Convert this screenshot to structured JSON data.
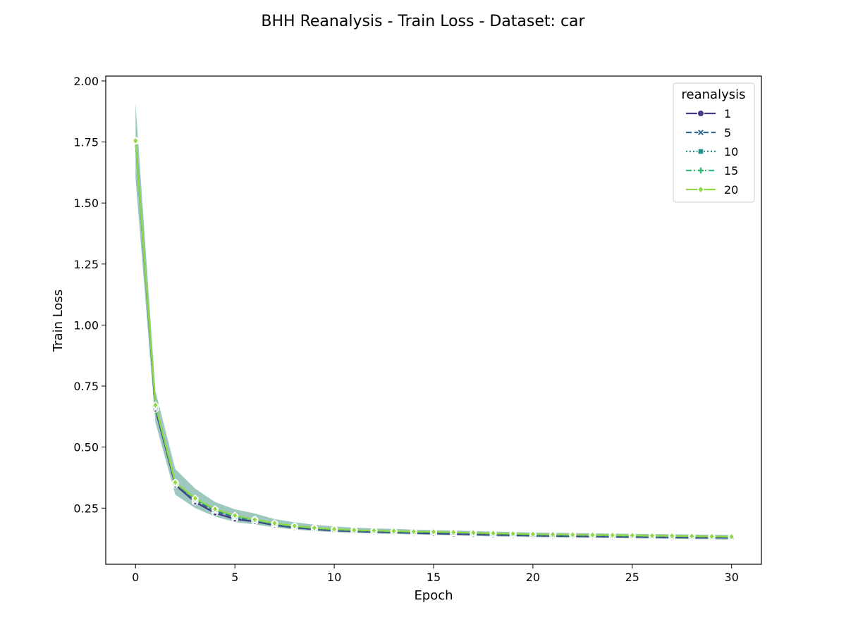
{
  "chart_data": {
    "type": "line",
    "title": "BHH Reanalysis - Train Loss - Dataset: car",
    "xlabel": "Epoch",
    "ylabel": "Train Loss",
    "xlim": [
      -1.5,
      31.5
    ],
    "ylim": [
      0.02,
      2.02
    ],
    "xticks": [
      0,
      5,
      10,
      15,
      20,
      25,
      30
    ],
    "yticks": [
      0.25,
      0.5,
      0.75,
      1.0,
      1.25,
      1.5,
      1.75,
      2.0
    ],
    "grid": false,
    "legend": {
      "title": "reanalysis",
      "placement": "top-right"
    },
    "x": [
      0,
      1,
      2,
      3,
      4,
      5,
      6,
      7,
      8,
      9,
      10,
      11,
      12,
      13,
      14,
      15,
      16,
      17,
      18,
      19,
      20,
      21,
      22,
      23,
      24,
      25,
      26,
      27,
      28,
      29,
      30
    ],
    "series": [
      {
        "name": "1",
        "color": "#443983",
        "marker": "circle",
        "dash": "solid",
        "values": [
          1.755,
          0.655,
          0.345,
          0.275,
          0.23,
          0.205,
          0.195,
          0.18,
          0.17,
          0.163,
          0.158,
          0.155,
          0.152,
          0.15,
          0.148,
          0.146,
          0.144,
          0.142,
          0.14,
          0.139,
          0.137,
          0.136,
          0.135,
          0.134,
          0.133,
          0.132,
          0.131,
          0.13,
          0.129,
          0.129,
          0.128
        ]
      },
      {
        "name": "5",
        "color": "#31688e",
        "marker": "x",
        "dash": "dashed",
        "values": [
          1.755,
          0.66,
          0.35,
          0.282,
          0.238,
          0.212,
          0.198,
          0.183,
          0.172,
          0.165,
          0.16,
          0.156,
          0.154,
          0.152,
          0.15,
          0.149,
          0.147,
          0.145,
          0.143,
          0.141,
          0.139,
          0.138,
          0.137,
          0.136,
          0.135,
          0.134,
          0.133,
          0.132,
          0.131,
          0.131,
          0.13
        ]
      },
      {
        "name": "10",
        "color": "#21918c",
        "marker": "square",
        "dash": "dotted",
        "values": [
          1.755,
          0.665,
          0.352,
          0.285,
          0.242,
          0.215,
          0.2,
          0.185,
          0.174,
          0.167,
          0.162,
          0.158,
          0.156,
          0.154,
          0.152,
          0.151,
          0.149,
          0.147,
          0.145,
          0.143,
          0.141,
          0.14,
          0.139,
          0.138,
          0.137,
          0.136,
          0.135,
          0.134,
          0.133,
          0.132,
          0.131
        ]
      },
      {
        "name": "15",
        "color": "#35b779",
        "marker": "plus",
        "dash": "dashdot",
        "values": [
          1.755,
          0.668,
          0.353,
          0.287,
          0.244,
          0.217,
          0.202,
          0.186,
          0.175,
          0.168,
          0.163,
          0.159,
          0.157,
          0.155,
          0.153,
          0.152,
          0.15,
          0.148,
          0.146,
          0.144,
          0.142,
          0.141,
          0.14,
          0.139,
          0.138,
          0.137,
          0.136,
          0.135,
          0.134,
          0.133,
          0.132
        ]
      },
      {
        "name": "20",
        "color": "#90d743",
        "marker": "diamond",
        "dash": "solid",
        "values": [
          1.755,
          0.672,
          0.355,
          0.29,
          0.246,
          0.22,
          0.203,
          0.188,
          0.177,
          0.169,
          0.164,
          0.16,
          0.158,
          0.156,
          0.154,
          0.153,
          0.151,
          0.149,
          0.147,
          0.145,
          0.143,
          0.142,
          0.141,
          0.14,
          0.139,
          0.138,
          0.137,
          0.136,
          0.135,
          0.134,
          0.133
        ]
      }
    ],
    "band": {
      "color": "#4a9a8a",
      "lower": [
        1.6,
        0.6,
        0.305,
        0.25,
        0.215,
        0.193,
        0.183,
        0.171,
        0.162,
        0.156,
        0.151,
        0.148,
        0.146,
        0.144,
        0.142,
        0.14,
        0.138,
        0.136,
        0.134,
        0.133,
        0.131,
        0.13,
        0.129,
        0.128,
        0.127,
        0.126,
        0.125,
        0.124,
        0.123,
        0.122,
        0.121
      ],
      "upper": [
        1.91,
        0.73,
        0.41,
        0.33,
        0.275,
        0.245,
        0.228,
        0.205,
        0.192,
        0.182,
        0.175,
        0.17,
        0.167,
        0.165,
        0.162,
        0.16,
        0.158,
        0.156,
        0.154,
        0.152,
        0.15,
        0.149,
        0.148,
        0.147,
        0.146,
        0.145,
        0.144,
        0.143,
        0.142,
        0.141,
        0.14
      ]
    }
  }
}
